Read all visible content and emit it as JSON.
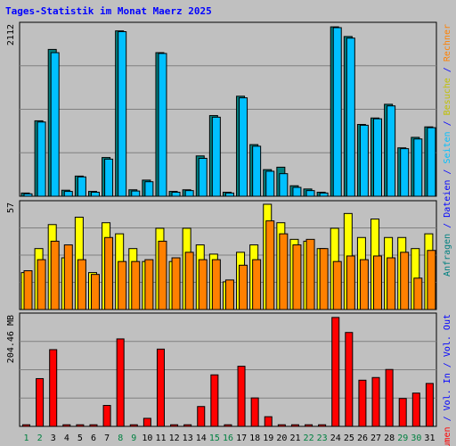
{
  "title": "Tages-Statistik im Monat Maerz 2025",
  "colors": {
    "background": "#c0c0c0",
    "frame": "#000000",
    "title": "#0000ff",
    "grid": "#808080",
    "hits": "#00c0ff",
    "files": "#008080",
    "pages": "#00ffff",
    "visits": "#ffff00",
    "sites": "#ff8000",
    "kbytes": "#ff0000",
    "weekend_label": "#008040",
    "weekday_label": "#000000"
  },
  "chart_data": [
    {
      "type": "bar",
      "panel": "requests",
      "ymax_label": "2112",
      "ymax": 2112,
      "categories": [
        "1",
        "2",
        "3",
        "4",
        "5",
        "6",
        "7",
        "8",
        "9",
        "10",
        "11",
        "12",
        "13",
        "14",
        "15",
        "16",
        "17",
        "18",
        "19",
        "20",
        "21",
        "22",
        "23",
        "24",
        "25",
        "26",
        "27",
        "28",
        "29",
        "30",
        "31"
      ],
      "weekend_days": [
        1,
        2,
        8,
        9,
        15,
        16,
        22,
        23,
        29,
        30
      ],
      "right_label_parts": [
        {
          "text": "Anfragen",
          "color": "#008080"
        },
        {
          "text": " / ",
          "color": "#0000ff"
        },
        {
          "text": "Dateien",
          "color": "#0000ff"
        },
        {
          "text": " / ",
          "color": "#0000ff"
        },
        {
          "text": "Seiten",
          "color": "#00c0ff"
        },
        {
          "text": " / ",
          "color": "#0000ff"
        },
        {
          "text": "Besuche",
          "color": "#c0c000"
        },
        {
          "text": " / ",
          "color": "#0000ff"
        },
        {
          "text": "Rechner",
          "color": "#ff8000"
        }
      ],
      "series": [
        {
          "name": "Anfragen",
          "values": [
            40,
            935,
            1820,
            75,
            250,
            60,
            480,
            2050,
            80,
            200,
            1780,
            60,
            80,
            500,
            1000,
            50,
            1240,
            640,
            330,
            360,
            130,
            90,
            50,
            2100,
            1980,
            890,
            970,
            1140,
            600,
            730,
            860
          ]
        },
        {
          "name": "Dateien",
          "values": [
            30,
            920,
            1780,
            60,
            240,
            50,
            460,
            2040,
            65,
            180,
            1770,
            50,
            70,
            470,
            980,
            40,
            1220,
            620,
            310,
            280,
            110,
            70,
            40,
            2090,
            1960,
            880,
            960,
            1120,
            590,
            710,
            850
          ]
        }
      ]
    },
    {
      "type": "bar",
      "panel": "visits",
      "ymax_label": "57",
      "ymax": 57,
      "series": [
        {
          "name": "Besuche",
          "values": [
            20,
            33,
            46,
            28,
            50,
            20,
            47,
            41,
            33,
            26,
            44,
            26,
            44,
            35,
            30,
            15,
            31,
            35,
            57,
            47,
            38,
            37,
            33,
            44,
            52,
            39,
            49,
            39,
            39,
            33,
            41
          ]
        },
        {
          "name": "Rechner",
          "values": [
            21,
            27,
            37,
            35,
            27,
            19,
            39,
            26,
            26,
            27,
            37,
            28,
            31,
            27,
            27,
            16,
            24,
            27,
            48,
            41,
            35,
            38,
            33,
            26,
            29,
            27,
            29,
            28,
            31,
            17,
            32
          ]
        }
      ]
    },
    {
      "type": "bar",
      "panel": "volume",
      "ymax_label": "204.46 MB",
      "ymax": 204.46,
      "unit": "MB",
      "series": [
        {
          "name": "Volumen",
          "values": [
            3,
            89,
            143,
            3,
            3,
            3,
            39,
            163,
            3,
            15,
            144,
            3,
            3,
            37,
            96,
            3,
            112,
            53,
            18,
            3,
            3,
            3,
            3,
            203,
            175,
            86,
            91,
            106,
            52,
            62,
            80
          ]
        }
      ]
    }
  ],
  "vol_label_parts": [
    {
      "text": "Volumen",
      "color": "#ff0000"
    },
    {
      "text": " / ",
      "color": "#0000ff"
    },
    {
      "text": "Vol. In",
      "color": "#0000ff"
    },
    {
      "text": " / ",
      "color": "#0000ff"
    },
    {
      "text": "Vol. Out",
      "color": "#0000ff"
    }
  ]
}
